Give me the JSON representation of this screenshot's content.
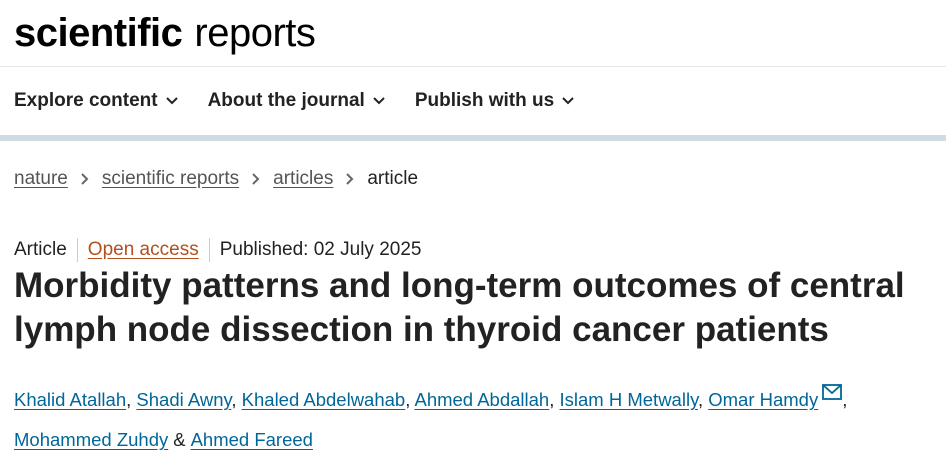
{
  "header": {
    "logo_bold": "scientific",
    "logo_light": "reports"
  },
  "nav": [
    "Explore content",
    "About the journal",
    "Publish with us"
  ],
  "breadcrumbs": [
    "nature",
    "scientific reports",
    "articles",
    "article"
  ],
  "meta": {
    "type": "Article",
    "access": "Open access",
    "published": "Published: 02 July 2025"
  },
  "title": "Morbidity patterns and long-term outcomes of central lymph node dissection in thyroid cancer patients",
  "authors": [
    {
      "name": "Khalid Atallah",
      "after": ","
    },
    {
      "name": "Shadi Awny",
      "after": ","
    },
    {
      "name": "Khaled Abdelwahab",
      "after": ","
    },
    {
      "name": "Ahmed Abdallah",
      "after": ","
    },
    {
      "name": "Islam H Metwally",
      "after": ","
    },
    {
      "name": "Omar Hamdy",
      "after": ","
    },
    {
      "name": "Mohammed Zuhdy",
      "after": "&"
    },
    {
      "name": "Ahmed Fareed"
    }
  ]
}
